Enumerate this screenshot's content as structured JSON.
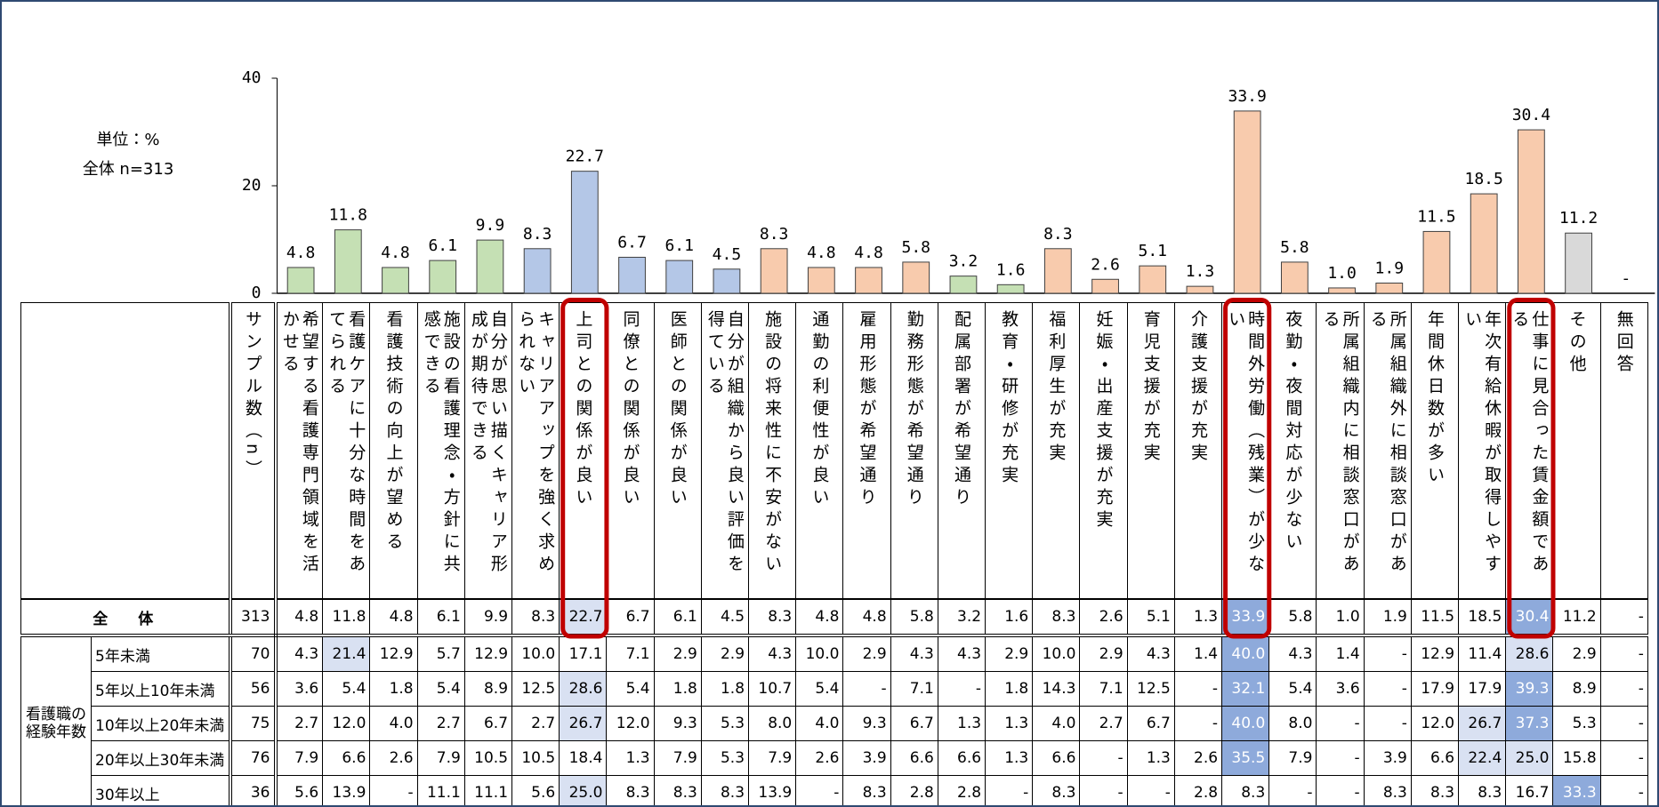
{
  "chart_data": {
    "type": "bar",
    "annotations": [
      "単位：%",
      "全体 n=313"
    ],
    "categories": [
      "希望する看護専門領域を活かせる",
      "看護ケアに十分な時間をあてられる",
      "看護技術の向上が望める",
      "施設の看護理念・方針に共感できる",
      "自分が思い描くキャリア形成が期待できる",
      "キャリアアップを強く求められない",
      "上司との関係が良い",
      "同僚との関係が良い",
      "医師との関係が良い",
      "自分が組織から良い評価を得ている",
      "施設の将来性に不安がない",
      "通勤の利便性が良い",
      "雇用形態が希望通り",
      "勤務形態が希望通り",
      "配属部署が希望通り",
      "教育・研修が充実",
      "福利厚生が充実",
      "妊娠・出産支援が充実",
      "育児支援が充実",
      "介護支援が充実",
      "時間外労働（残業）が少ない",
      "夜勤・夜間対応が少ない",
      "所属組織内に相談窓口がある",
      "所属組織外に相談窓口がある",
      "年間休日数が多い",
      "年次有給休暇が取得しやすい",
      "仕事に見合った賃金額である",
      "その他",
      "無回答"
    ],
    "values": [
      4.8,
      11.8,
      4.8,
      6.1,
      9.9,
      8.3,
      22.7,
      6.7,
      6.1,
      4.5,
      8.3,
      4.8,
      4.8,
      5.8,
      3.2,
      1.6,
      8.3,
      2.6,
      5.1,
      1.3,
      33.9,
      5.8,
      1.0,
      1.9,
      11.5,
      18.5,
      30.4,
      11.2,
      null
    ],
    "value_labels": [
      "4.8",
      "11.8",
      "4.8",
      "6.1",
      "9.9",
      "8.3",
      "22.7",
      "6.7",
      "6.1",
      "4.5",
      "8.3",
      "4.8",
      "4.8",
      "5.8",
      "3.2",
      "1.6",
      "8.3",
      "2.6",
      "5.1",
      "1.3",
      "33.9",
      "5.8",
      "1.0",
      "1.9",
      "11.5",
      "18.5",
      "30.4",
      "11.2",
      "-"
    ],
    "colors": [
      "#c5e0b4",
      "#c5e0b4",
      "#c5e0b4",
      "#c5e0b4",
      "#c5e0b4",
      "#b4c7e7",
      "#b4c7e7",
      "#b4c7e7",
      "#b4c7e7",
      "#b4c7e7",
      "#f8cbad",
      "#f8cbad",
      "#f8cbad",
      "#f8cbad",
      "#c5e0b4",
      "#c5e0b4",
      "#f8cbad",
      "#f8cbad",
      "#f8cbad",
      "#f8cbad",
      "#f8cbad",
      "#f8cbad",
      "#f8cbad",
      "#f8cbad",
      "#f8cbad",
      "#f8cbad",
      "#f8cbad",
      "#d9d9d9",
      "#d9d9d9"
    ],
    "ylim": [
      0,
      40
    ],
    "yticks": [
      0,
      20,
      40
    ],
    "grid": false
  },
  "table": {
    "sample_header": "サンプル数（n）",
    "group_label": "看護職の経験年数",
    "outlined_columns": [
      6,
      20,
      26
    ],
    "rows": [
      {
        "label": "全　　体",
        "n": 313,
        "cells": [
          "4.8",
          "11.8",
          "4.8",
          "6.1",
          "9.9",
          "8.3",
          "22.7",
          "6.7",
          "6.1",
          "4.5",
          "8.3",
          "4.8",
          "4.8",
          "5.8",
          "3.2",
          "1.6",
          "8.3",
          "2.6",
          "5.1",
          "1.3",
          "33.9",
          "5.8",
          "1.0",
          "1.9",
          "11.5",
          "18.5",
          "30.4",
          "11.2",
          "-"
        ],
        "strong": [
          20,
          26
        ],
        "light": [
          6
        ]
      },
      {
        "label": "5年未満",
        "n": 70,
        "cells": [
          "4.3",
          "21.4",
          "12.9",
          "5.7",
          "12.9",
          "10.0",
          "17.1",
          "7.1",
          "2.9",
          "2.9",
          "4.3",
          "10.0",
          "2.9",
          "4.3",
          "4.3",
          "2.9",
          "10.0",
          "2.9",
          "4.3",
          "1.4",
          "40.0",
          "4.3",
          "1.4",
          "-",
          "12.9",
          "11.4",
          "28.6",
          "2.9",
          "-"
        ],
        "strong": [
          20
        ],
        "light": [
          1,
          26
        ]
      },
      {
        "label": "5年以上10年未満",
        "n": 56,
        "cells": [
          "3.6",
          "5.4",
          "1.8",
          "5.4",
          "8.9",
          "12.5",
          "28.6",
          "5.4",
          "1.8",
          "1.8",
          "10.7",
          "5.4",
          "-",
          "7.1",
          "-",
          "1.8",
          "14.3",
          "7.1",
          "12.5",
          "-",
          "32.1",
          "5.4",
          "3.6",
          "-",
          "17.9",
          "17.9",
          "39.3",
          "8.9",
          "-"
        ],
        "strong": [
          20,
          26
        ],
        "light": [
          6
        ]
      },
      {
        "label": "10年以上20年未満",
        "n": 75,
        "cells": [
          "2.7",
          "12.0",
          "4.0",
          "2.7",
          "6.7",
          "2.7",
          "26.7",
          "12.0",
          "9.3",
          "5.3",
          "8.0",
          "4.0",
          "9.3",
          "6.7",
          "1.3",
          "1.3",
          "4.0",
          "2.7",
          "6.7",
          "-",
          "40.0",
          "8.0",
          "-",
          "-",
          "12.0",
          "26.7",
          "37.3",
          "5.3",
          "-"
        ],
        "strong": [
          20,
          26
        ],
        "light": [
          6,
          25
        ]
      },
      {
        "label": "20年以上30年未満",
        "n": 76,
        "cells": [
          "7.9",
          "6.6",
          "2.6",
          "7.9",
          "10.5",
          "10.5",
          "18.4",
          "1.3",
          "7.9",
          "5.3",
          "7.9",
          "2.6",
          "3.9",
          "6.6",
          "6.6",
          "1.3",
          "6.6",
          "-",
          "1.3",
          "2.6",
          "35.5",
          "7.9",
          "-",
          "3.9",
          "6.6",
          "22.4",
          "25.0",
          "15.8",
          "-"
        ],
        "strong": [
          20
        ],
        "light": [
          25,
          26
        ]
      },
      {
        "label": "30年以上",
        "n": 36,
        "cells": [
          "5.6",
          "13.9",
          "-",
          "11.1",
          "11.1",
          "5.6",
          "25.0",
          "8.3",
          "8.3",
          "8.3",
          "13.9",
          "-",
          "8.3",
          "2.8",
          "2.8",
          "-",
          "8.3",
          "-",
          "-",
          "2.8",
          "8.3",
          "-",
          "-",
          "8.3",
          "8.3",
          "8.3",
          "16.7",
          "33.3",
          "-"
        ],
        "strong": [
          27
        ],
        "light": [
          6
        ]
      }
    ]
  }
}
